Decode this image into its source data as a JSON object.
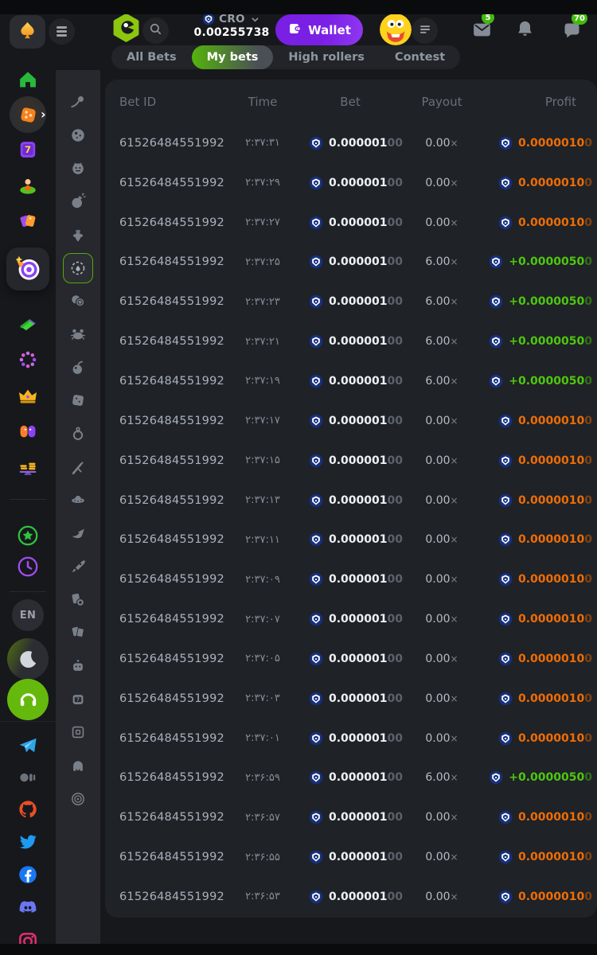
{
  "header": {
    "wallet_label": "Wallet",
    "currency": {
      "code": "CRO",
      "balance": "0.00255738"
    },
    "badges": {
      "mail": "5",
      "chat": "70"
    }
  },
  "tabs": [
    {
      "label": "All Bets",
      "active": false
    },
    {
      "label": "My bets",
      "active": true
    },
    {
      "label": "High rollers",
      "active": false
    },
    {
      "label": "Contest",
      "active": false
    }
  ],
  "table": {
    "columns": [
      "Bet ID",
      "Time",
      "Bet",
      "Payout",
      "Profit"
    ],
    "rows": [
      {
        "id": "61526484551992",
        "time": "۲:۳۷:۳۱",
        "bet_main": "0.000001",
        "bet_dim": "00",
        "payout": "0.00",
        "payout_symbol": "×",
        "profit_main": "0.0000010",
        "profit_dim": "0",
        "result": "loss"
      },
      {
        "id": "61526484551992",
        "time": "۲:۳۷:۲۹",
        "bet_main": "0.000001",
        "bet_dim": "00",
        "payout": "0.00",
        "payout_symbol": "×",
        "profit_main": "0.0000010",
        "profit_dim": "0",
        "result": "loss"
      },
      {
        "id": "61526484551992",
        "time": "۲:۳۷:۲۷",
        "bet_main": "0.000001",
        "bet_dim": "00",
        "payout": "0.00",
        "payout_symbol": "×",
        "profit_main": "0.0000010",
        "profit_dim": "0",
        "result": "loss"
      },
      {
        "id": "61526484551992",
        "time": "۲:۳۷:۲۵",
        "bet_main": "0.000001",
        "bet_dim": "00",
        "payout": "6.00",
        "payout_symbol": "×",
        "profit_main": "+0.0000050",
        "profit_dim": "0",
        "result": "win"
      },
      {
        "id": "61526484551992",
        "time": "۲:۳۷:۲۳",
        "bet_main": "0.000001",
        "bet_dim": "00",
        "payout": "6.00",
        "payout_symbol": "×",
        "profit_main": "+0.0000050",
        "profit_dim": "0",
        "result": "win"
      },
      {
        "id": "61526484551992",
        "time": "۲:۳۷:۲۱",
        "bet_main": "0.000001",
        "bet_dim": "00",
        "payout": "6.00",
        "payout_symbol": "×",
        "profit_main": "+0.0000050",
        "profit_dim": "0",
        "result": "win"
      },
      {
        "id": "61526484551992",
        "time": "۲:۳۷:۱۹",
        "bet_main": "0.000001",
        "bet_dim": "00",
        "payout": "6.00",
        "payout_symbol": "×",
        "profit_main": "+0.0000050",
        "profit_dim": "0",
        "result": "win"
      },
      {
        "id": "61526484551992",
        "time": "۲:۳۷:۱۷",
        "bet_main": "0.000001",
        "bet_dim": "00",
        "payout": "0.00",
        "payout_symbol": "×",
        "profit_main": "0.0000010",
        "profit_dim": "0",
        "result": "loss"
      },
      {
        "id": "61526484551992",
        "time": "۲:۳۷:۱۵",
        "bet_main": "0.000001",
        "bet_dim": "00",
        "payout": "0.00",
        "payout_symbol": "×",
        "profit_main": "0.0000010",
        "profit_dim": "0",
        "result": "loss"
      },
      {
        "id": "61526484551992",
        "time": "۲:۳۷:۱۳",
        "bet_main": "0.000001",
        "bet_dim": "00",
        "payout": "0.00",
        "payout_symbol": "×",
        "profit_main": "0.0000010",
        "profit_dim": "0",
        "result": "loss"
      },
      {
        "id": "61526484551992",
        "time": "۲:۳۷:۱۱",
        "bet_main": "0.000001",
        "bet_dim": "00",
        "payout": "0.00",
        "payout_symbol": "×",
        "profit_main": "0.0000010",
        "profit_dim": "0",
        "result": "loss"
      },
      {
        "id": "61526484551992",
        "time": "۲:۳۷:۰۹",
        "bet_main": "0.000001",
        "bet_dim": "00",
        "payout": "0.00",
        "payout_symbol": "×",
        "profit_main": "0.0000010",
        "profit_dim": "0",
        "result": "loss"
      },
      {
        "id": "61526484551992",
        "time": "۲:۳۷:۰۷",
        "bet_main": "0.000001",
        "bet_dim": "00",
        "payout": "0.00",
        "payout_symbol": "×",
        "profit_main": "0.0000010",
        "profit_dim": "0",
        "result": "loss"
      },
      {
        "id": "61526484551992",
        "time": "۲:۳۷:۰۵",
        "bet_main": "0.000001",
        "bet_dim": "00",
        "payout": "0.00",
        "payout_symbol": "×",
        "profit_main": "0.0000010",
        "profit_dim": "0",
        "result": "loss"
      },
      {
        "id": "61526484551992",
        "time": "۲:۳۷:۰۳",
        "bet_main": "0.000001",
        "bet_dim": "00",
        "payout": "0.00",
        "payout_symbol": "×",
        "profit_main": "0.0000010",
        "profit_dim": "0",
        "result": "loss"
      },
      {
        "id": "61526484551992",
        "time": "۲:۳۷:۰۱",
        "bet_main": "0.000001",
        "bet_dim": "00",
        "payout": "0.00",
        "payout_symbol": "×",
        "profit_main": "0.0000010",
        "profit_dim": "0",
        "result": "loss"
      },
      {
        "id": "61526484551992",
        "time": "۲:۳۶:۵۹",
        "bet_main": "0.000001",
        "bet_dim": "00",
        "payout": "6.00",
        "payout_symbol": "×",
        "profit_main": "+0.0000050",
        "profit_dim": "0",
        "result": "win"
      },
      {
        "id": "61526484551992",
        "time": "۲:۳۶:۵۷",
        "bet_main": "0.000001",
        "bet_dim": "00",
        "payout": "0.00",
        "payout_symbol": "×",
        "profit_main": "0.0000010",
        "profit_dim": "0",
        "result": "loss"
      },
      {
        "id": "61526484551992",
        "time": "۲:۳۶:۵۵",
        "bet_main": "0.000001",
        "bet_dim": "00",
        "payout": "0.00",
        "payout_symbol": "×",
        "profit_main": "0.0000010",
        "profit_dim": "0",
        "result": "loss"
      },
      {
        "id": "61526484551992",
        "time": "۲:۳۶:۵۳",
        "bet_main": "0.000001",
        "bet_dim": "00",
        "payout": "0.00",
        "payout_symbol": "×",
        "profit_main": "0.0000010",
        "profit_dim": "0",
        "result": "loss"
      }
    ]
  },
  "sidebar": {
    "language_label": "EN",
    "main_items": [
      "home",
      "casino",
      "slots",
      "live-casino",
      "promotions",
      "bc-originals",
      "racing",
      "bonus",
      "vip-club",
      "affiliate",
      "staking",
      "quests",
      "recent",
      "language",
      "theme-moon",
      "support",
      "telegram",
      "medium",
      "github",
      "twitter",
      "facebook",
      "discord",
      "instagram"
    ],
    "rail_items": [
      "limbo-comet",
      "moon-ball",
      "monster",
      "bomb",
      "spin-top",
      "crash-target",
      "twin-coins",
      "crab",
      "cherry-bomb",
      "dice-cube",
      "key-ring",
      "sword",
      "saucer",
      "bird",
      "rocket",
      "cards-chip",
      "playing-cards",
      "robot",
      "slot-bot",
      "frame",
      "helmet",
      "disc"
    ],
    "active_rail_item": "crash-target"
  },
  "colors": {
    "accent_green": "#55b30c",
    "win_green": "#4ec70e",
    "loss_orange": "#ee6d05",
    "wallet_purple": "#7d22e9",
    "badge_green": "#43ba0e",
    "coin_navy": "#16307d",
    "panel_bg": "#1f2227"
  }
}
